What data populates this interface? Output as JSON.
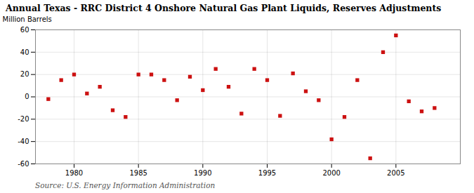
{
  "chart_data": {
    "type": "scatter",
    "title": "Annual Texas - RRC District 4 Onshore Natural Gas Plant Liquids, Reserves Adjustments",
    "ylabel": "Million Barrels",
    "source": "Source: U.S. Energy Information Administration",
    "x": [
      1978,
      1979,
      1980,
      1981,
      1982,
      1983,
      1984,
      1985,
      1986,
      1987,
      1988,
      1989,
      1990,
      1991,
      1992,
      1993,
      1994,
      1995,
      1996,
      1997,
      1998,
      1999,
      2000,
      2001,
      2002,
      2003,
      2004,
      2005,
      2006,
      2007,
      2008
    ],
    "values": [
      -2,
      15,
      20,
      3,
      9,
      -12,
      -18,
      20,
      20,
      15,
      -3,
      18,
      6,
      25,
      9,
      -15,
      25,
      15,
      -17,
      21,
      5,
      -3,
      -38,
      -18,
      15,
      -55,
      40,
      55,
      -4,
      -13,
      -10
    ],
    "color": "#cc1111",
    "marker": "square",
    "xlim": [
      1977,
      2010
    ],
    "ylim": [
      -60,
      60
    ],
    "xticks": [
      1980,
      1985,
      1990,
      1995,
      2000,
      2005
    ],
    "yticks": [
      -60,
      -40,
      -20,
      0,
      20,
      40,
      60
    ],
    "grid": true
  }
}
